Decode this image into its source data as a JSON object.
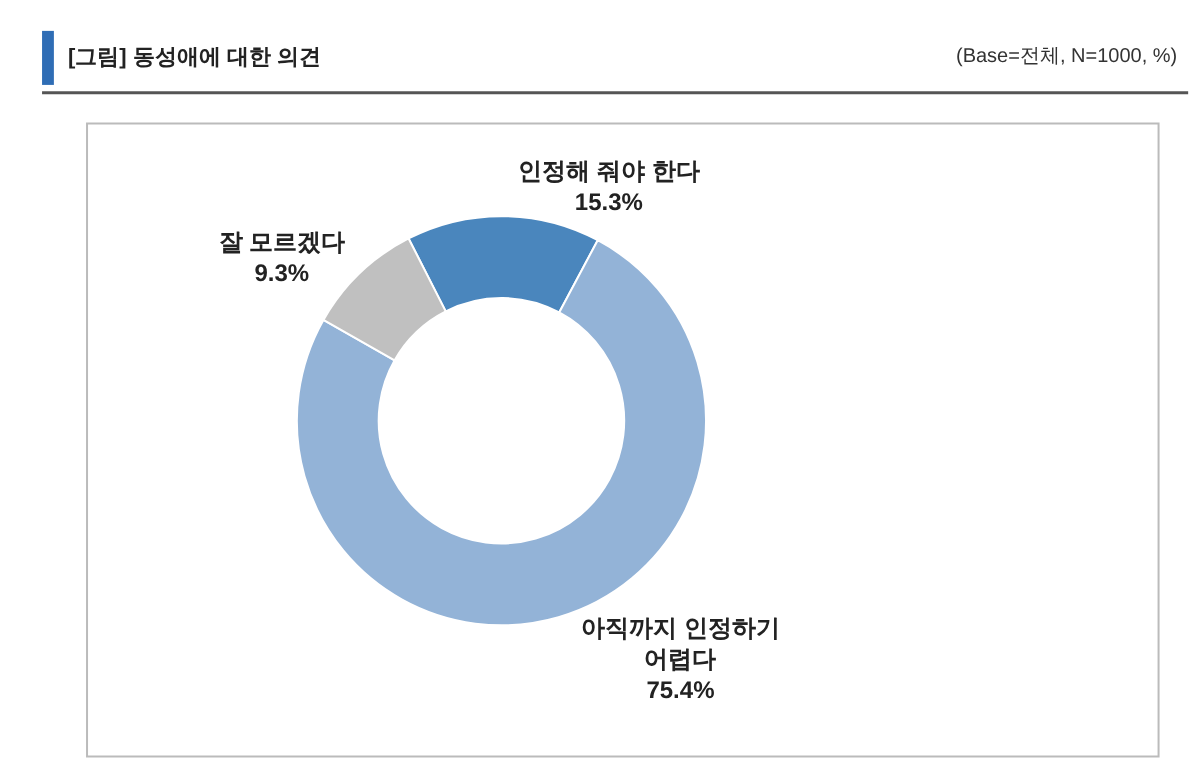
{
  "chart_data": {
    "type": "donut",
    "title": "[그림] 동성애에 대한 의견",
    "subtitle": "(Base=전체, N=1000, %)",
    "categories": [
      "인정해 줘야 한다",
      "아직까지 인정하기 어렵다",
      "잘 모르겠다"
    ],
    "values": [
      15.3,
      75.4,
      9.3
    ],
    "value_labels": [
      "15.3%",
      "75.4%",
      "9.3%"
    ],
    "colors": [
      "#4a86bd",
      "#93b3d7",
      "#c0c0c0"
    ],
    "legend": false
  }
}
